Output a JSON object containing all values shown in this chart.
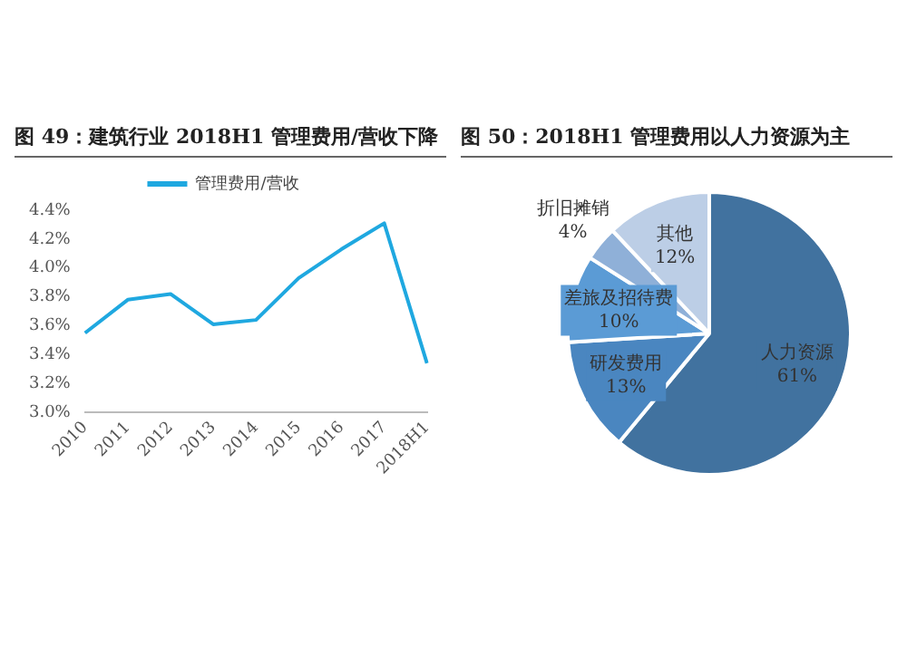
{
  "chart_data": [
    {
      "type": "line",
      "title": "图 49：建筑行业 2018H1 管理费用/营收下降",
      "categories": [
        "2010",
        "2011",
        "2012",
        "2013",
        "2014",
        "2015",
        "2016",
        "2017",
        "2018H1"
      ],
      "series": [
        {
          "name": "管理费用/营收",
          "color": "#1fa8e0",
          "values": [
            3.55,
            3.78,
            3.82,
            3.61,
            3.64,
            3.93,
            4.13,
            4.31,
            3.34
          ]
        }
      ],
      "ylim": [
        3.0,
        4.4
      ],
      "yticks": [
        {
          "value": 3.0,
          "label": "3.0%"
        },
        {
          "value": 3.2,
          "label": "3.2%"
        },
        {
          "value": 3.4,
          "label": "3.4%"
        },
        {
          "value": 3.6,
          "label": "3.6%"
        },
        {
          "value": 3.8,
          "label": "3.8%"
        },
        {
          "value": 4.0,
          "label": "4.0%"
        },
        {
          "value": 4.2,
          "label": "4.2%"
        },
        {
          "value": 4.4,
          "label": "4.4%"
        }
      ],
      "grid": false,
      "legend": "top",
      "marker": "none",
      "line_style": "solid"
    },
    {
      "type": "pie",
      "title": "图 50：2018H1 管理费用以人力资源为主",
      "categories": [
        "人力资源",
        "研发费用",
        "差旅及招待费",
        "折旧摊销",
        "其他"
      ],
      "values": [
        61,
        13,
        10,
        4,
        12
      ],
      "value_labels": [
        "61%",
        "13%",
        "10%",
        "4%",
        "12%"
      ],
      "colors": [
        "#41729f",
        "#4a86c0",
        "#5b9bd5",
        "#8fb0d8",
        "#bccee6"
      ],
      "legend": false
    }
  ]
}
